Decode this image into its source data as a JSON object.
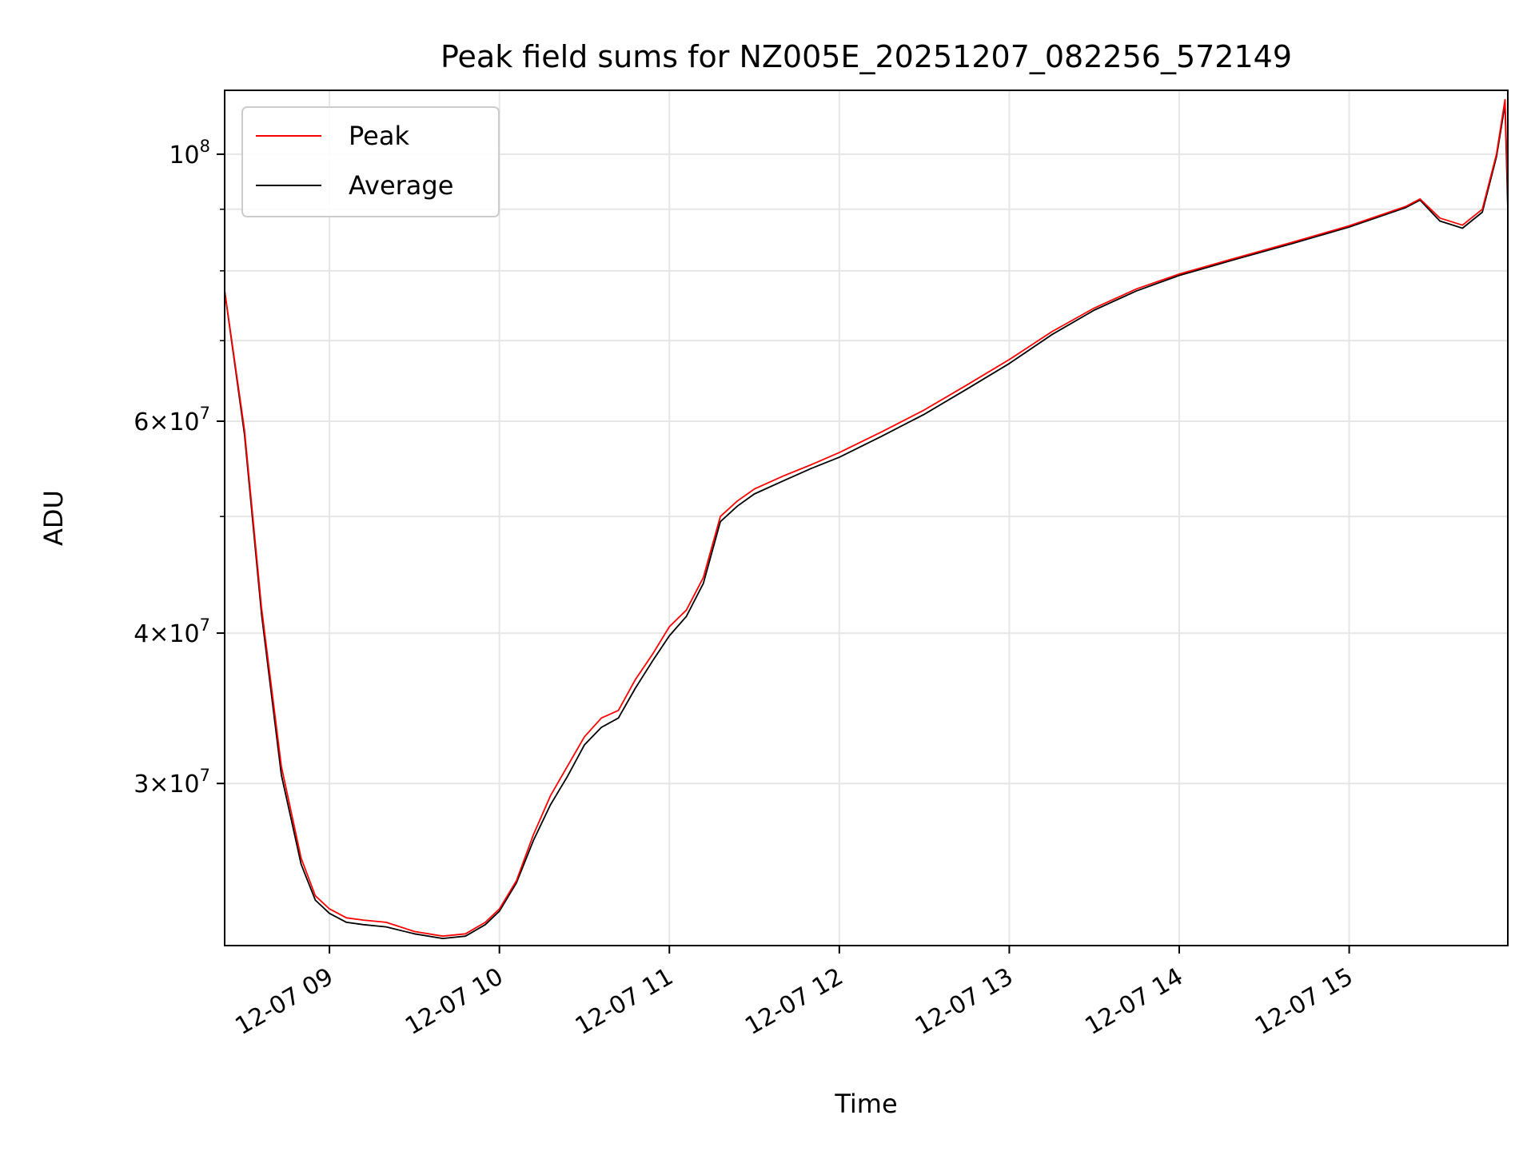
{
  "chart_data": {
    "type": "line",
    "title": "Peak field sums for NZ005E_20251207_082256_572149",
    "xlabel": "Time",
    "ylabel": "ADU",
    "yscale": "log",
    "xlim": [
      "12-07 08:23",
      "12-07 15:56"
    ],
    "ylim": [
      22000000,
      113000000
    ],
    "grid": true,
    "legend_position": "top-left",
    "x_ticks": [
      "12-07 09",
      "12-07 10",
      "12-07 11",
      "12-07 12",
      "12-07 13",
      "12-07 14",
      "12-07 15"
    ],
    "y_ticks": [
      {
        "value": 30000000,
        "mantissa": "3",
        "exponent": "7"
      },
      {
        "value": 40000000,
        "mantissa": "4",
        "exponent": "7"
      },
      {
        "value": 60000000,
        "mantissa": "6",
        "exponent": "7"
      },
      {
        "value": 100000000,
        "mantissa": "",
        "exponent": "8"
      }
    ],
    "y_minor_ticks": [
      50000000,
      70000000,
      80000000,
      90000000
    ],
    "series": [
      {
        "name": "Peak",
        "color": "#ff0000",
        "x": [
          "12-07 08:23",
          "12-07 08:30",
          "12-07 08:36",
          "12-07 08:43",
          "12-07 08:50",
          "12-07 08:55",
          "12-07 09:00",
          "12-07 09:06",
          "12-07 09:12",
          "12-07 09:20",
          "12-07 09:30",
          "12-07 09:40",
          "12-07 09:48",
          "12-07 09:55",
          "12-07 10:00",
          "12-07 10:06",
          "12-07 10:12",
          "12-07 10:18",
          "12-07 10:24",
          "12-07 10:30",
          "12-07 10:36",
          "12-07 10:42",
          "12-07 10:48",
          "12-07 10:54",
          "12-07 11:00",
          "12-07 11:06",
          "12-07 11:12",
          "12-07 11:18",
          "12-07 11:24",
          "12-07 11:30",
          "12-07 11:40",
          "12-07 11:50",
          "12-07 12:00",
          "12-07 12:15",
          "12-07 12:30",
          "12-07 12:45",
          "12-07 13:00",
          "12-07 13:15",
          "12-07 13:30",
          "12-07 13:45",
          "12-07 14:00",
          "12-07 14:20",
          "12-07 14:40",
          "12-07 15:00",
          "12-07 15:20",
          "12-07 15:25",
          "12-07 15:32",
          "12-07 15:40",
          "12-07 15:47",
          "12-07 15:52",
          "12-07 15:55",
          "12-07 15:56"
        ],
        "values": [
          77000000,
          59000000,
          42000000,
          31000000,
          26000000,
          24200000,
          23600000,
          23200000,
          23100000,
          23000000,
          22600000,
          22400000,
          22500000,
          23000000,
          23600000,
          24900000,
          27200000,
          29300000,
          31000000,
          32800000,
          34000000,
          34500000,
          36600000,
          38400000,
          40500000,
          41800000,
          44500000,
          50000000,
          51500000,
          52700000,
          54000000,
          55200000,
          56500000,
          58800000,
          61300000,
          64300000,
          67500000,
          71200000,
          74500000,
          77300000,
          79500000,
          82000000,
          84500000,
          87200000,
          90500000,
          91800000,
          88500000,
          87300000,
          90000000,
          100000000,
          111000000,
          92000000
        ]
      },
      {
        "name": "Average",
        "color": "#000000",
        "x": [
          "12-07 08:23",
          "12-07 08:30",
          "12-07 08:36",
          "12-07 08:43",
          "12-07 08:50",
          "12-07 08:55",
          "12-07 09:00",
          "12-07 09:06",
          "12-07 09:12",
          "12-07 09:20",
          "12-07 09:30",
          "12-07 09:40",
          "12-07 09:48",
          "12-07 09:55",
          "12-07 10:00",
          "12-07 10:06",
          "12-07 10:12",
          "12-07 10:18",
          "12-07 10:24",
          "12-07 10:30",
          "12-07 10:36",
          "12-07 10:42",
          "12-07 10:48",
          "12-07 10:54",
          "12-07 11:00",
          "12-07 11:06",
          "12-07 11:12",
          "12-07 11:18",
          "12-07 11:24",
          "12-07 11:30",
          "12-07 11:40",
          "12-07 11:50",
          "12-07 12:00",
          "12-07 12:15",
          "12-07 12:30",
          "12-07 12:45",
          "12-07 13:00",
          "12-07 13:15",
          "12-07 13:30",
          "12-07 13:45",
          "12-07 14:00",
          "12-07 14:20",
          "12-07 14:40",
          "12-07 15:00",
          "12-07 15:20",
          "12-07 15:25",
          "12-07 15:32",
          "12-07 15:40",
          "12-07 15:47",
          "12-07 15:52",
          "12-07 15:55",
          "12-07 15:56"
        ],
        "values": [
          77000000,
          58500000,
          41500000,
          30500000,
          25700000,
          24000000,
          23400000,
          23000000,
          22900000,
          22800000,
          22500000,
          22300000,
          22400000,
          22900000,
          23500000,
          24800000,
          26900000,
          28800000,
          30400000,
          32300000,
          33400000,
          34000000,
          36000000,
          37900000,
          39800000,
          41300000,
          44000000,
          49500000,
          51000000,
          52200000,
          53500000,
          54800000,
          56000000,
          58300000,
          60800000,
          63800000,
          67000000,
          70800000,
          74200000,
          77000000,
          79300000,
          81800000,
          84300000,
          87000000,
          90300000,
          91600000,
          88000000,
          86800000,
          89500000,
          99500000,
          110000000,
          90000000
        ]
      }
    ]
  }
}
